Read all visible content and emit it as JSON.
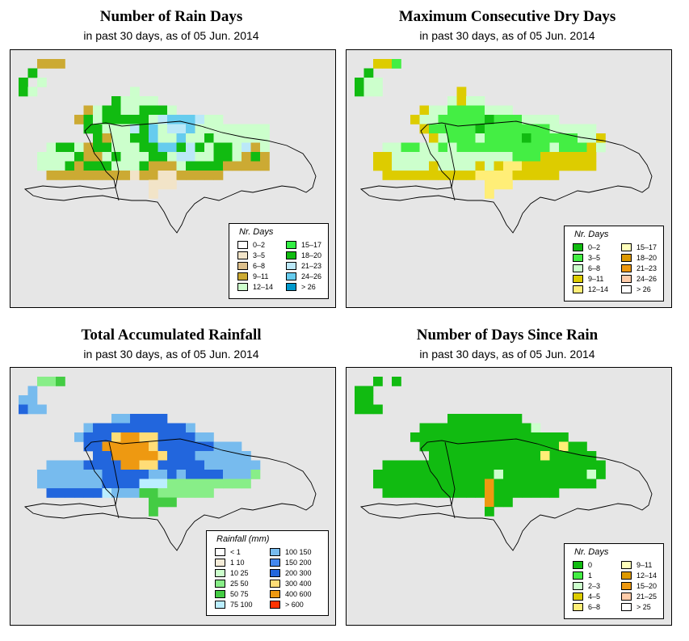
{
  "panels": [
    {
      "id": "rain-days",
      "title": "Number of Rain Days",
      "subtitle": "in past 30 days, as of  05 Jun. 2014",
      "legend": {
        "title": "Nr. Days",
        "items": [
          {
            "label": "0–2",
            "color": "#ffffff"
          },
          {
            "label": "15–17",
            "color": "#33ee44"
          },
          {
            "label": "3–5",
            "color": "#f2e4c8"
          },
          {
            "label": "18–20",
            "color": "#11bb11"
          },
          {
            "label": "6–8",
            "color": "#ddc08c"
          },
          {
            "label": "21–23",
            "color": "#bbe8f8"
          },
          {
            "label": "9–11",
            "color": "#ccaa33"
          },
          {
            "label": "24–26",
            "color": "#66ccee"
          },
          {
            "label": "12–14",
            "color": "#ccffcc"
          },
          {
            "label": "> 26",
            "color": "#0099cc"
          }
        ]
      }
    },
    {
      "id": "max-dry-days",
      "title": "Maximum Consecutive Dry Days",
      "subtitle": "in past 30 days, as of  05 Jun. 2014",
      "legend": {
        "title": "Nr. Days",
        "items": [
          {
            "label": "0–2",
            "color": "#11bb11"
          },
          {
            "label": "15–17",
            "color": "#ffffbb"
          },
          {
            "label": "3–5",
            "color": "#44ee44"
          },
          {
            "label": "18–20",
            "color": "#dd9900"
          },
          {
            "label": "6–8",
            "color": "#ccffcc"
          },
          {
            "label": "21–23",
            "color": "#ee9911"
          },
          {
            "label": "9–11",
            "color": "#ddcc00"
          },
          {
            "label": "24–26",
            "color": "#ffccaa"
          },
          {
            "label": "12–14",
            "color": "#ffee77"
          },
          {
            "label": "> 26",
            "color": "#ffffff"
          }
        ]
      }
    },
    {
      "id": "total-rainfall",
      "title": "Total Accumulated Rainfall",
      "subtitle": "in past 30 days, as of  05 Jun. 2014",
      "legend": {
        "title": "Rainfall (mm)",
        "items": [
          {
            "label": "< 1",
            "color": "#ffffff"
          },
          {
            "label": "100  150",
            "color": "#77bbee"
          },
          {
            "label": "1    10",
            "color": "#f5ecd8"
          },
          {
            "label": "150  200",
            "color": "#4488ee"
          },
          {
            "label": "10    25",
            "color": "#ccffcc"
          },
          {
            "label": "200  300",
            "color": "#2266dd"
          },
          {
            "label": "25    50",
            "color": "#88ee88"
          },
          {
            "label": "300  400",
            "color": "#ffdd77"
          },
          {
            "label": "50    75",
            "color": "#44cc44"
          },
          {
            "label": "400  600",
            "color": "#ee9911"
          },
          {
            "label": "75  100",
            "color": "#bbeeff"
          },
          {
            "label": "> 600",
            "color": "#ff3300"
          }
        ]
      }
    },
    {
      "id": "days-since-rain",
      "title": "Number of Days Since Rain",
      "subtitle": "in past 30 days, as of  05 Jun. 2014",
      "legend": {
        "title": "Nr. Days",
        "items": [
          {
            "label": "0",
            "color": "#11bb11"
          },
          {
            "label": "9–11",
            "color": "#ffffbb"
          },
          {
            "label": "1",
            "color": "#44ee44"
          },
          {
            "label": "12–14",
            "color": "#dd9900"
          },
          {
            "label": "2–3",
            "color": "#ccffcc"
          },
          {
            "label": "15–20",
            "color": "#ee9911"
          },
          {
            "label": "4–5",
            "color": "#ddcc00"
          },
          {
            "label": "21–25",
            "color": "#ffccaa"
          },
          {
            "label": "6–8",
            "color": "#ffee77"
          },
          {
            "label": "> 25",
            "color": "#ffffff"
          }
        ]
      }
    }
  ],
  "grid_maps": {
    "rain-days": {
      "rows": [
        "..ccc...........................",
        ".d..............................",
        "d.l.............................",
        "dl..........l...................",
        "..........dllll.................",
        ".......clddlldddl...............",
        "......cdldddddlgrrrgll..........",
        ".......ddlllgdrlggrllllllll.....",
        "........dcllddrllrlldllllll.....",
        "...lddlcddlllddrrdgdlddlgcl.....",
        "..lllldccldlllddlggllddlcdc.....",
        "..llldcdddllldccclddddccccc.....",
        "...cccccccccbccbbccccc..........",
        "..............bbb...............",
        "..............b................."
      ],
      "codes": {
        "c": "#ccaa33",
        "b": "#f2e4c8",
        "d": "#11bb11",
        "l": "#ccffcc",
        "g": "#bbe8f8",
        "r": "#66ccee",
        "e": "#33ee44"
      }
    },
    "max-dry-days": {
      "rows": [
        "..yye...........................",
        ".d..............................",
        "dll.............................",
        "dll........y....................",
        "..........lyll..................",
        ".......ylleeeelll...............",
        "......ylleeeeedeeellll..........",
        ".......yeeeeedeeeeeeelllll......",
        "........yleeeleeeedeeeeelly.....",
        "...lleelleleeeeeeeeeeleeeyl.....",
        "..yyllllllllllllleeeyyyyyy......",
        "..yyllllyllllylyppyyyyyyyy......",
        "...yyyyyyyyyyppppyyyyy..........",
        "..............ppp...............",
        "..............p................."
      ],
      "codes": {
        "y": "#ddcc00",
        "p": "#ffee77",
        "d": "#11bb11",
        "e": "#44ee44",
        "l": "#ccffcc"
      }
    },
    "total-rainfall": {
      "rows": [
        "..eed...........................",
        ".k..............................",
        "kk..............................",
        "bkk.............................",
        "..........kkbbbb................",
        ".......kbbbbbbbbbbk.............",
        "......kbbbyooyybbbbkk...........",
        ".......bboooooybbbbbbkkk........",
        "........bboooooybbbkkkkkk.......",
        "...kkkkbbbbooyybbbbbkkkkkk......",
        "..kkkkkkkbbbbbkkbkbbbbkkke......",
        "..kkkkkkkbbbbnnneeeeeeeee.......",
        "...bbbbbbnkkkggeeeeee...........",
        "..............ggg...............",
        "..............g................."
      ],
      "codes": {
        "e": "#88ee88",
        "d": "#44cc44",
        "g": "#44cc44",
        "k": "#77bbee",
        "b": "#2266dd",
        "y": "#ffdd77",
        "o": "#ee9911",
        "n": "#bbeeff"
      }
    },
    "days-since-rain": {
      "rows": [
        "..g.g...........................",
        "gg..............................",
        "gg..............................",
        "ggg.............................",
        "..........gggggggg..............",
        ".......ggggggggggggl............",
        "......ggggggggggggggggg.........",
        ".......gggggggggggggggegg.......",
        "........ggggggggggggeggggg......",
        "...gggggggggggggggggggggggg.....",
        "..ggggggggggggglggggggggglg.....",
        "..ggggggggggggoggggggggggg......",
        "...gggggggggggoggggggg..........",
        "..............ogg...............",
        "..............g................."
      ],
      "codes": {
        "g": "#11bb11",
        "l": "#ccffcc",
        "e": "#ffee77",
        "o": "#ee9911"
      }
    }
  }
}
